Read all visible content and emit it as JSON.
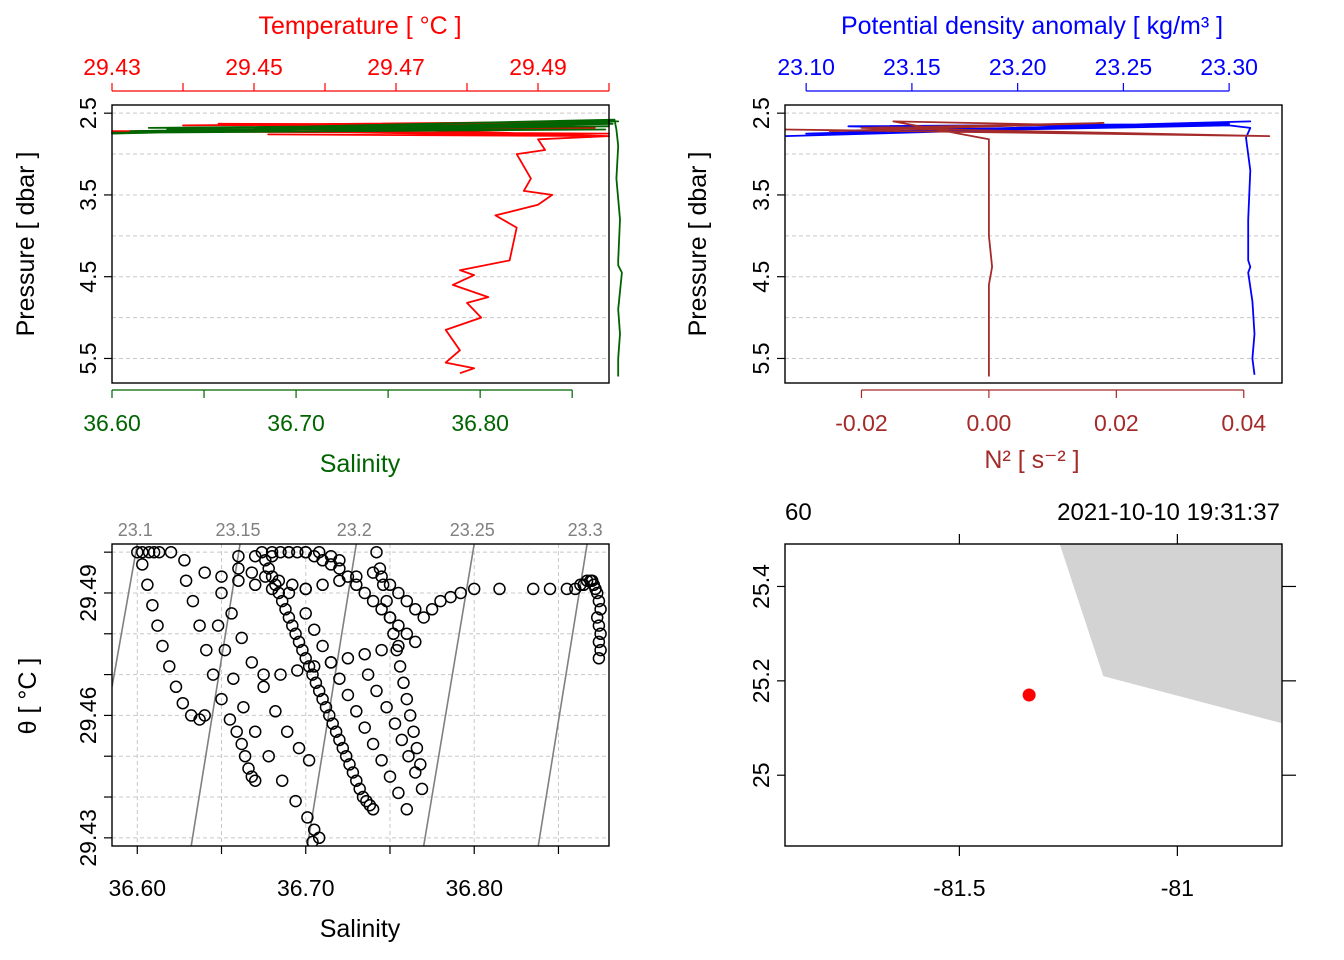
{
  "colors": {
    "temperature": "#ff0000",
    "salinity": "#006400",
    "density": "#0000ff",
    "n2": "#a52a2a",
    "isopycnal": "#808080",
    "coastline_fill": "#d3d3d3",
    "station": "#ff0000",
    "grid": "#c8c8c8"
  },
  "chart_data": [
    {
      "id": "profile-ts",
      "type": "line",
      "top_axis_label": "Temperature [ °C ]",
      "bottom_axis_label": "Salinity",
      "ylabel": "Pressure [ dbar ]",
      "y_reversed": true,
      "ylim": [
        2.4,
        5.8
      ],
      "y_tick_labels": [
        "2.5",
        "3.5",
        "4.5",
        "5.5"
      ],
      "y_ticks": [
        2.5,
        3.5,
        4.5,
        5.5
      ],
      "top_xlim": [
        29.43,
        29.5
      ],
      "top_x_ticks": [
        29.43,
        29.44,
        29.45,
        29.46,
        29.47,
        29.48,
        29.49,
        29.5
      ],
      "top_x_tick_labels": [
        "29.43",
        "",
        "29.45",
        "",
        "29.47",
        "",
        "29.49",
        ""
      ],
      "bottom_xlim": [
        36.6,
        36.87
      ],
      "bottom_x_ticks": [
        36.6,
        36.65,
        36.7,
        36.75,
        36.8,
        36.85
      ],
      "bottom_x_tick_labels": [
        "36.60",
        "",
        "36.70",
        "",
        "36.80",
        ""
      ],
      "grid": "dashed",
      "series": [
        {
          "axis": "top",
          "color_key": "temperature",
          "x": [
            29.49,
            29.5,
            29.44,
            29.495,
            29.45,
            29.498,
            29.43,
            29.5,
            29.46,
            29.5,
            29.445,
            29.49,
            29.47,
            29.5,
            29.452,
            29.5,
            29.49,
            29.491,
            29.487,
            29.489,
            29.488,
            29.492,
            29.49,
            29.484,
            29.487,
            29.486,
            29.479,
            29.481,
            29.478,
            29.483,
            29.48,
            29.482,
            29.477,
            29.479,
            29.477,
            29.481,
            29.479
          ],
          "y": [
            2.6,
            2.6,
            2.65,
            2.62,
            2.7,
            2.68,
            2.72,
            2.75,
            2.73,
            2.78,
            2.63,
            2.64,
            2.7,
            2.78,
            2.76,
            2.78,
            2.82,
            2.95,
            3.0,
            3.3,
            3.45,
            3.5,
            3.62,
            3.75,
            3.9,
            4.3,
            4.42,
            4.48,
            4.6,
            4.75,
            4.82,
            5.0,
            5.15,
            5.4,
            5.55,
            5.62,
            5.68
          ]
        },
        {
          "axis": "bottom",
          "color_key": "salinity",
          "x": [
            36.85,
            36.875,
            36.6,
            36.87,
            36.61,
            36.87,
            36.62,
            36.872,
            36.6,
            36.868,
            36.63,
            36.873,
            36.874,
            36.875,
            36.874,
            36.876,
            36.875,
            36.875,
            36.877,
            36.875,
            36.876,
            36.875,
            36.875
          ],
          "y": [
            2.6,
            2.6,
            2.75,
            2.62,
            2.72,
            2.66,
            2.68,
            2.63,
            2.74,
            2.7,
            2.7,
            2.58,
            2.7,
            2.9,
            3.3,
            3.8,
            4.3,
            4.36,
            4.45,
            4.9,
            5.2,
            5.5,
            5.72
          ]
        }
      ]
    },
    {
      "id": "profile-density-n2",
      "type": "line",
      "top_axis_label": "Potential density anomaly [ kg/m³ ]",
      "bottom_axis_label": "N² [ s⁻² ]",
      "ylabel": "Pressure [ dbar ]",
      "y_reversed": true,
      "ylim": [
        2.4,
        5.8
      ],
      "y_tick_labels": [
        "2.5",
        "3.5",
        "4.5",
        "5.5"
      ],
      "y_ticks": [
        2.5,
        3.5,
        4.5,
        5.5
      ],
      "top_xlim": [
        23.09,
        23.325
      ],
      "top_x_ticks": [
        23.1,
        23.15,
        23.2,
        23.25,
        23.3
      ],
      "top_x_tick_labels": [
        "23.10",
        "23.15",
        "23.20",
        "23.25",
        "23.30"
      ],
      "bottom_xlim": [
        -0.032,
        0.046
      ],
      "bottom_x_ticks": [
        -0.02,
        0.0,
        0.02,
        0.04
      ],
      "bottom_x_tick_labels": [
        "-0.02",
        "0.00",
        "0.02",
        "0.04"
      ],
      "grid": "dashed",
      "series": [
        {
          "axis": "top",
          "color_key": "density",
          "x": [
            23.09,
            23.2,
            23.12,
            23.3,
            23.14,
            23.31,
            23.1,
            23.3,
            23.31,
            23.308,
            23.31,
            23.309,
            23.309,
            23.31,
            23.309,
            23.311,
            23.312,
            23.311,
            23.312
          ],
          "y": [
            2.78,
            2.7,
            2.66,
            2.63,
            2.72,
            2.6,
            2.75,
            2.65,
            2.68,
            2.8,
            3.2,
            3.8,
            4.3,
            4.38,
            4.45,
            4.8,
            5.2,
            5.5,
            5.7
          ]
        },
        {
          "axis": "bottom",
          "color_key": "n2",
          "x": [
            -0.032,
            0.044,
            -0.02,
            0.018,
            -0.025,
            0.01,
            -0.015,
            0.0,
            0.0,
            0.0,
            0.0005,
            0.0,
            0.0,
            0.0
          ],
          "y": [
            2.7,
            2.78,
            2.68,
            2.62,
            2.72,
            2.64,
            2.6,
            2.82,
            3.2,
            4.0,
            4.38,
            4.6,
            5.2,
            5.72
          ]
        }
      ]
    },
    {
      "id": "ts-diagram",
      "type": "scatter",
      "xlabel": "Salinity",
      "ylabel": "θ [ °C ]",
      "xlim": [
        36.585,
        36.88
      ],
      "ylim": [
        29.428,
        29.502
      ],
      "x_ticks": [
        36.6,
        36.65,
        36.7,
        36.75,
        36.8,
        36.85
      ],
      "x_tick_labels": [
        "36.60",
        "",
        "36.70",
        "",
        "36.80",
        ""
      ],
      "y_ticks": [
        29.43,
        29.44,
        29.45,
        29.46,
        29.47,
        29.48,
        29.49,
        29.5
      ],
      "y_tick_labels": [
        "29.43",
        "",
        "",
        "29.46",
        "",
        "",
        "29.49",
        ""
      ],
      "grid": "dashed",
      "isopycnals": [
        {
          "label": "23.1",
          "x": [
            36.585,
            36.6
          ],
          "y": [
            29.467,
            29.502
          ]
        },
        {
          "label": "23.15",
          "x": [
            36.632,
            36.661
          ],
          "y": [
            29.428,
            29.502
          ]
        },
        {
          "label": "23.2",
          "x": [
            36.701,
            36.73
          ],
          "y": [
            29.428,
            29.502
          ]
        },
        {
          "label": "23.25",
          "x": [
            36.77,
            36.8
          ],
          "y": [
            29.428,
            29.502
          ]
        },
        {
          "label": "23.3",
          "x": [
            36.838,
            36.867
          ],
          "y": [
            29.428,
            29.502
          ]
        }
      ],
      "points_x": [
        36.6,
        36.603,
        36.607,
        36.61,
        36.613,
        36.62,
        36.603,
        36.606,
        36.609,
        36.612,
        36.615,
        36.619,
        36.623,
        36.627,
        36.632,
        36.637,
        36.64,
        36.628,
        36.629,
        36.633,
        36.637,
        36.641,
        36.645,
        36.65,
        36.655,
        36.659,
        36.662,
        36.664,
        36.666,
        36.668,
        36.67,
        36.66,
        36.67,
        36.68,
        36.69,
        36.7,
        36.708,
        36.715,
        36.72,
        36.66,
        36.668,
        36.676,
        36.684,
        36.692,
        36.7,
        36.65,
        36.656,
        36.662,
        36.668,
        36.675,
        36.682,
        36.689,
        36.696,
        36.702,
        36.648,
        36.652,
        36.657,
        36.663,
        36.67,
        36.678,
        36.686,
        36.694,
        36.701,
        36.705,
        36.708,
        36.704,
        36.674,
        36.676,
        36.678,
        36.68,
        36.682,
        36.684,
        36.686,
        36.688,
        36.69,
        36.692,
        36.694,
        36.696,
        36.698,
        36.7,
        36.702,
        36.704,
        36.706,
        36.708,
        36.71,
        36.712,
        36.714,
        36.716,
        36.718,
        36.72,
        36.722,
        36.724,
        36.726,
        36.728,
        36.73,
        36.732,
        36.734,
        36.736,
        36.738,
        36.74,
        36.742,
        36.744,
        36.746,
        36.748,
        36.75,
        36.752,
        36.754,
        36.756,
        36.758,
        36.76,
        36.762,
        36.764,
        36.766,
        36.768,
        36.675,
        36.685,
        36.695,
        36.705,
        36.715,
        36.725,
        36.735,
        36.745,
        36.755,
        36.765,
        36.76,
        36.755,
        36.75,
        36.745,
        36.74,
        36.735,
        36.73,
        36.725,
        36.72,
        36.715,
        36.71,
        36.705,
        36.7,
        36.695,
        36.69,
        36.685,
        36.68,
        36.737,
        36.742,
        36.748,
        36.753,
        36.757,
        36.761,
        36.765,
        36.769,
        36.7,
        36.705,
        36.71,
        36.715,
        36.72,
        36.725,
        36.73,
        36.735,
        36.74,
        36.745,
        36.75,
        36.755,
        36.76,
        36.64,
        36.65,
        36.66,
        36.67,
        36.68,
        36.69,
        36.7,
        36.71,
        36.72,
        36.73,
        36.74,
        36.745,
        36.75,
        36.755,
        36.76,
        36.765,
        36.77,
        36.775,
        36.78,
        36.786,
        36.792,
        36.8,
        36.815,
        36.835,
        36.845,
        36.855,
        36.86,
        36.863,
        36.865,
        36.867,
        36.869,
        36.87,
        36.871,
        36.872,
        36.873,
        36.874,
        36.875,
        36.873,
        36.874,
        36.875,
        36.874,
        36.875,
        36.874
      ],
      "points_y": [
        29.5,
        29.5,
        29.5,
        29.5,
        29.5,
        29.5,
        29.497,
        29.492,
        29.487,
        29.482,
        29.477,
        29.472,
        29.467,
        29.463,
        29.46,
        29.459,
        29.46,
        29.498,
        29.493,
        29.488,
        29.482,
        29.476,
        29.47,
        29.464,
        29.459,
        29.456,
        29.453,
        29.45,
        29.447,
        29.445,
        29.444,
        29.499,
        29.499,
        29.499,
        29.5,
        29.5,
        29.5,
        29.499,
        29.498,
        29.496,
        29.495,
        29.494,
        29.493,
        29.492,
        29.491,
        29.49,
        29.485,
        29.479,
        29.473,
        29.467,
        29.461,
        29.456,
        29.452,
        29.449,
        29.482,
        29.476,
        29.469,
        29.462,
        29.456,
        29.45,
        29.444,
        29.439,
        29.435,
        29.432,
        29.43,
        29.429,
        29.5,
        29.498,
        29.496,
        29.494,
        29.492,
        29.49,
        29.488,
        29.486,
        29.484,
        29.482,
        29.48,
        29.478,
        29.476,
        29.474,
        29.472,
        29.47,
        29.468,
        29.466,
        29.464,
        29.462,
        29.46,
        29.458,
        29.456,
        29.454,
        29.452,
        29.45,
        29.448,
        29.446,
        29.444,
        29.442,
        29.44,
        29.439,
        29.438,
        29.437,
        29.5,
        29.496,
        29.492,
        29.488,
        29.484,
        29.48,
        29.476,
        29.472,
        29.468,
        29.464,
        29.46,
        29.456,
        29.452,
        29.448,
        29.47,
        29.47,
        29.471,
        29.472,
        29.473,
        29.474,
        29.475,
        29.476,
        29.477,
        29.478,
        29.48,
        29.482,
        29.484,
        29.486,
        29.488,
        29.49,
        29.492,
        29.494,
        29.496,
        29.497,
        29.498,
        29.499,
        29.5,
        29.5,
        29.5,
        29.5,
        29.5,
        29.47,
        29.466,
        29.462,
        29.458,
        29.454,
        29.45,
        29.446,
        29.442,
        29.485,
        29.481,
        29.477,
        29.473,
        29.469,
        29.465,
        29.461,
        29.457,
        29.453,
        29.449,
        29.445,
        29.441,
        29.437,
        29.495,
        29.494,
        29.493,
        29.492,
        29.491,
        29.49,
        29.491,
        29.492,
        29.493,
        29.494,
        29.495,
        29.494,
        29.492,
        29.49,
        29.488,
        29.486,
        29.484,
        29.486,
        29.488,
        29.489,
        29.49,
        29.491,
        29.491,
        29.491,
        29.491,
        29.491,
        29.491,
        29.492,
        29.492,
        29.493,
        29.493,
        29.493,
        29.492,
        29.491,
        29.49,
        29.488,
        29.486,
        29.484,
        29.482,
        29.48,
        29.478,
        29.476,
        29.474
      ]
    },
    {
      "id": "station-map",
      "type": "scatter",
      "top_left_label": "60",
      "top_right_label": "2021-10-10 19:31:37",
      "xlim": [
        -81.9,
        -80.76
      ],
      "ylim": [
        24.85,
        25.49
      ],
      "x_ticks": [
        -81.5,
        -81.0
      ],
      "x_tick_labels": [
        "-81.5",
        "-81"
      ],
      "y_ticks": [
        25.0,
        25.2,
        25.4
      ],
      "y_tick_labels": [
        "25",
        "25.2",
        "25.4"
      ],
      "land_polygon": {
        "lon": [
          -81.27,
          -81.17,
          -80.76,
          -80.76
        ],
        "lat": [
          25.49,
          25.21,
          25.11,
          25.49
        ]
      },
      "station": {
        "lon": -81.34,
        "lat": 25.17
      }
    }
  ]
}
